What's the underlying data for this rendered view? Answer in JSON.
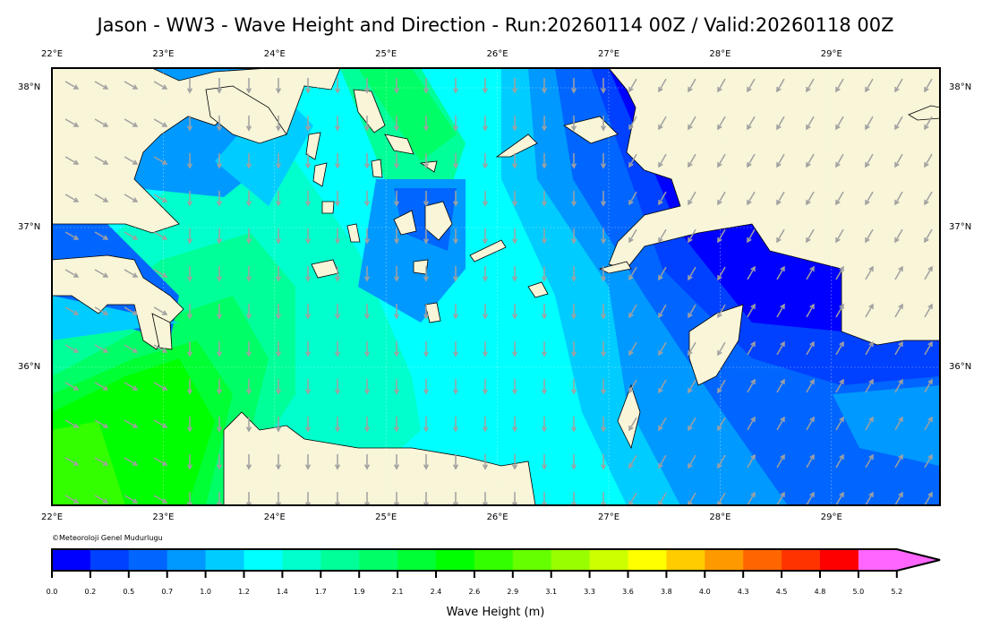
{
  "title": "Jason - WW3 - Wave Height and Direction - Run:20260114 00Z / Valid:20260118 00Z",
  "lon_labels": [
    "22°E",
    "23°E",
    "24°E",
    "25°E",
    "26°E",
    "27°E",
    "28°E",
    "29°E"
  ],
  "lat_labels": [
    "38°N",
    "37°N",
    "36°N"
  ],
  "credit": "©Meteoroloji Genel Mudurlugu",
  "colorbar": {
    "title": "Wave Height (m)",
    "ticks": [
      "0.0",
      "0.2",
      "0.5",
      "0.7",
      "1.0",
      "1.2",
      "1.4",
      "1.7",
      "1.9",
      "2.1",
      "2.4",
      "2.6",
      "2.9",
      "3.1",
      "3.3",
      "3.6",
      "3.8",
      "4.0",
      "4.3",
      "4.5",
      "4.8",
      "5.0",
      "5.2"
    ],
    "colors": [
      "#0000FF",
      "#0040FF",
      "#0066FF",
      "#0099FF",
      "#00CCFF",
      "#00FFFF",
      "#00FFCC",
      "#00FF99",
      "#00FF66",
      "#00FF33",
      "#00FF00",
      "#33FF00",
      "#66FF00",
      "#99FF00",
      "#CCFF00",
      "#FFFF00",
      "#FFCC00",
      "#FF9900",
      "#FF6600",
      "#FF3300",
      "#FF0000",
      "#FF66FF"
    ],
    "extend": "max"
  },
  "colors": {
    "land": "#F8F5D8",
    "arrow": "#A0A0A0"
  }
}
